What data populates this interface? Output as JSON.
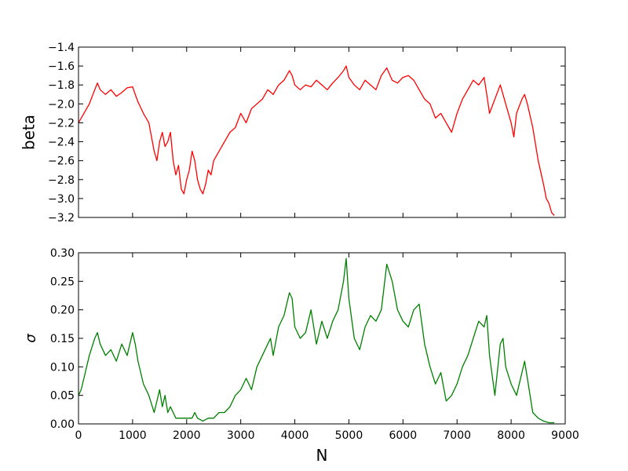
{
  "chart_data": [
    {
      "type": "line",
      "panel": "top",
      "xlabel": "",
      "ylabel": "beta",
      "xlim": [
        0,
        9000
      ],
      "ylim": [
        -3.2,
        -1.4
      ],
      "xticks": [
        0,
        1000,
        2000,
        3000,
        4000,
        5000,
        6000,
        7000,
        8000,
        9000
      ],
      "xticklabels_visible": false,
      "yticks": [
        -3.2,
        -3.0,
        -2.8,
        -2.6,
        -2.4,
        -2.2,
        -2.0,
        -1.8,
        -1.6,
        -1.4
      ],
      "yticklabels": [
        "−3.2",
        "−3.0",
        "−2.8",
        "−2.6",
        "−2.4",
        "−2.2",
        "−2.0",
        "−1.8",
        "−1.6",
        "−1.4"
      ],
      "grid": false,
      "color": "#ff0000",
      "series": [
        {
          "x": [
            0,
            100,
            200,
            300,
            350,
            400,
            500,
            600,
            700,
            800,
            900,
            1000,
            1050,
            1100,
            1200,
            1300,
            1350,
            1400,
            1450,
            1500,
            1550,
            1600,
            1650,
            1700,
            1750,
            1800,
            1850,
            1900,
            1950,
            2000,
            2050,
            2100,
            2150,
            2200,
            2250,
            2300,
            2350,
            2400,
            2450,
            2500,
            2600,
            2700,
            2800,
            2900,
            3000,
            3100,
            3200,
            3300,
            3400,
            3500,
            3600,
            3700,
            3800,
            3900,
            3950,
            4000,
            4100,
            4200,
            4300,
            4400,
            4500,
            4600,
            4700,
            4800,
            4900,
            4950,
            5000,
            5100,
            5200,
            5300,
            5400,
            5500,
            5600,
            5700,
            5800,
            5900,
            6000,
            6100,
            6200,
            6300,
            6400,
            6500,
            6600,
            6700,
            6800,
            6900,
            7000,
            7100,
            7200,
            7300,
            7400,
            7500,
            7550,
            7600,
            7700,
            7800,
            7900,
            8000,
            8050,
            8100,
            8200,
            8250,
            8300,
            8400,
            8500,
            8600,
            8650,
            8700,
            8750,
            8800
          ],
          "y": [
            -2.2,
            -2.1,
            -2.0,
            -1.85,
            -1.78,
            -1.85,
            -1.9,
            -1.85,
            -1.92,
            -1.88,
            -1.83,
            -1.82,
            -1.9,
            -1.98,
            -2.1,
            -2.2,
            -2.35,
            -2.5,
            -2.6,
            -2.4,
            -2.3,
            -2.45,
            -2.4,
            -2.3,
            -2.6,
            -2.75,
            -2.65,
            -2.9,
            -2.95,
            -2.8,
            -2.7,
            -2.5,
            -2.6,
            -2.8,
            -2.9,
            -2.95,
            -2.85,
            -2.7,
            -2.75,
            -2.6,
            -2.5,
            -2.4,
            -2.3,
            -2.25,
            -2.1,
            -2.2,
            -2.05,
            -2.0,
            -1.95,
            -1.85,
            -1.9,
            -1.8,
            -1.75,
            -1.65,
            -1.7,
            -1.8,
            -1.85,
            -1.8,
            -1.82,
            -1.75,
            -1.8,
            -1.85,
            -1.78,
            -1.72,
            -1.65,
            -1.6,
            -1.72,
            -1.8,
            -1.85,
            -1.75,
            -1.8,
            -1.85,
            -1.7,
            -1.62,
            -1.75,
            -1.78,
            -1.72,
            -1.7,
            -1.75,
            -1.85,
            -1.95,
            -2.0,
            -2.15,
            -2.1,
            -2.2,
            -2.3,
            -2.1,
            -1.95,
            -1.85,
            -1.75,
            -1.8,
            -1.72,
            -1.9,
            -2.1,
            -1.95,
            -1.8,
            -2.0,
            -2.2,
            -2.35,
            -2.1,
            -1.95,
            -1.9,
            -2.0,
            -2.25,
            -2.6,
            -2.85,
            -3.0,
            -3.05,
            -3.15,
            -3.18
          ]
        }
      ]
    },
    {
      "type": "line",
      "panel": "bottom",
      "xlabel": "N",
      "ylabel": "σ",
      "xlim": [
        0,
        9000
      ],
      "ylim": [
        0.0,
        0.3
      ],
      "xticks": [
        0,
        1000,
        2000,
        3000,
        4000,
        5000,
        6000,
        7000,
        8000,
        9000
      ],
      "xticklabels": [
        "0",
        "1000",
        "2000",
        "3000",
        "4000",
        "5000",
        "6000",
        "7000",
        "8000",
        "9000"
      ],
      "yticks": [
        0.0,
        0.05,
        0.1,
        0.15,
        0.2,
        0.25,
        0.3
      ],
      "yticklabels": [
        "0.00",
        "0.05",
        "0.10",
        "0.15",
        "0.20",
        "0.25",
        "0.30"
      ],
      "grid": false,
      "color": "#008000",
      "series": [
        {
          "x": [
            0,
            50,
            100,
            200,
            300,
            350,
            400,
            500,
            600,
            700,
            800,
            900,
            1000,
            1050,
            1100,
            1200,
            1300,
            1400,
            1450,
            1500,
            1550,
            1600,
            1650,
            1700,
            1750,
            1800,
            1900,
            2000,
            2100,
            2150,
            2200,
            2300,
            2400,
            2500,
            2600,
            2700,
            2800,
            2900,
            3000,
            3100,
            3200,
            3300,
            3400,
            3500,
            3550,
            3600,
            3700,
            3800,
            3900,
            3950,
            4000,
            4100,
            4200,
            4300,
            4400,
            4500,
            4600,
            4700,
            4800,
            4900,
            4950,
            5000,
            5100,
            5200,
            5300,
            5400,
            5500,
            5600,
            5700,
            5800,
            5900,
            6000,
            6100,
            6200,
            6300,
            6400,
            6500,
            6600,
            6700,
            6800,
            6900,
            7000,
            7100,
            7200,
            7300,
            7400,
            7500,
            7550,
            7600,
            7700,
            7800,
            7850,
            7900,
            8000,
            8100,
            8200,
            8250,
            8300,
            8400,
            8500,
            8600,
            8700,
            8800
          ],
          "y": [
            0.05,
            0.06,
            0.08,
            0.12,
            0.15,
            0.16,
            0.14,
            0.12,
            0.13,
            0.11,
            0.14,
            0.12,
            0.16,
            0.14,
            0.11,
            0.07,
            0.05,
            0.02,
            0.04,
            0.06,
            0.03,
            0.05,
            0.02,
            0.03,
            0.02,
            0.01,
            0.01,
            0.01,
            0.01,
            0.02,
            0.01,
            0.005,
            0.01,
            0.01,
            0.02,
            0.02,
            0.03,
            0.05,
            0.06,
            0.08,
            0.06,
            0.1,
            0.12,
            0.14,
            0.15,
            0.12,
            0.17,
            0.19,
            0.23,
            0.22,
            0.17,
            0.15,
            0.16,
            0.2,
            0.14,
            0.18,
            0.15,
            0.18,
            0.2,
            0.25,
            0.29,
            0.22,
            0.15,
            0.13,
            0.17,
            0.19,
            0.18,
            0.2,
            0.28,
            0.25,
            0.2,
            0.18,
            0.17,
            0.2,
            0.21,
            0.14,
            0.1,
            0.07,
            0.09,
            0.04,
            0.05,
            0.07,
            0.1,
            0.12,
            0.15,
            0.18,
            0.17,
            0.19,
            0.12,
            0.05,
            0.14,
            0.15,
            0.1,
            0.07,
            0.05,
            0.09,
            0.11,
            0.08,
            0.02,
            0.01,
            0.005,
            0.002,
            0.002
          ]
        }
      ]
    }
  ]
}
